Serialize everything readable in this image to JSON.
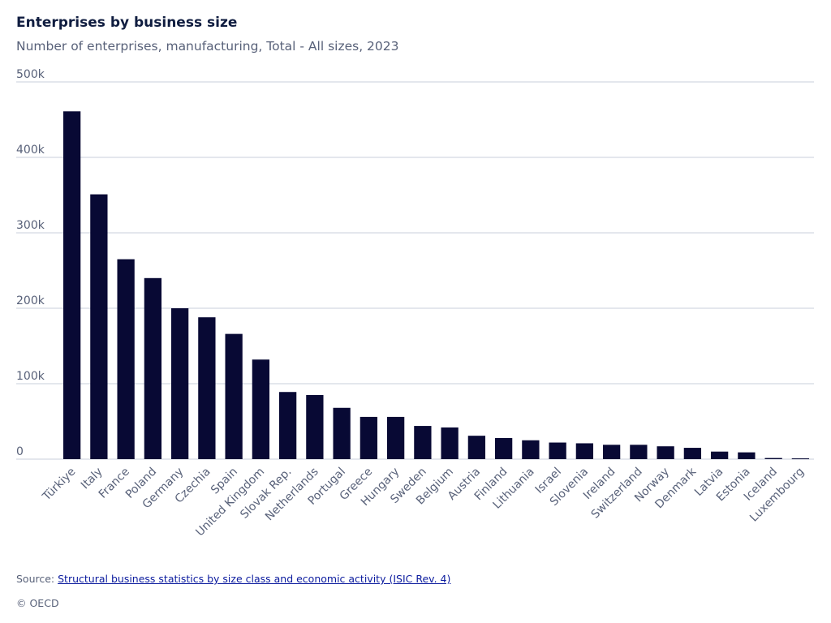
{
  "header": {
    "title": "Enterprises by business size",
    "subtitle": "Number of enterprises, manufacturing, Total - All sizes, 2023"
  },
  "footer": {
    "source_prefix": "Source: ",
    "source_link": "Structural business statistics by size class and economic activity (ISIC Rev. 4)",
    "copyright": "© OECD"
  },
  "colors": {
    "bar": "#080934",
    "grid": "#c9cfdb",
    "axis_text": "#586179",
    "link": "#0b1b9e"
  },
  "chart_data": {
    "type": "bar",
    "title": "Enterprises by business size",
    "subtitle": "Number of enterprises, manufacturing, Total - All sizes, 2023",
    "xlabel": "",
    "ylabel": "",
    "ylim": [
      0,
      500000
    ],
    "yticks": [
      0,
      100000,
      200000,
      300000,
      400000,
      500000
    ],
    "ytick_labels": [
      "0",
      "100k",
      "200k",
      "300k",
      "400k",
      "500k"
    ],
    "grid": true,
    "categories": [
      "Türkiye",
      "Italy",
      "France",
      "Poland",
      "Germany",
      "Czechia",
      "Spain",
      "United Kingdom",
      "Slovak Rep.",
      "Netherlands",
      "Portugal",
      "Greece",
      "Hungary",
      "Sweden",
      "Belgium",
      "Austria",
      "Finland",
      "Lithuania",
      "Israel",
      "Slovenia",
      "Ireland",
      "Switzerland",
      "Norway",
      "Denmark",
      "Latvia",
      "Estonia",
      "Iceland",
      "Luxembourg"
    ],
    "values": [
      461000,
      351000,
      265000,
      240000,
      200000,
      188000,
      166000,
      132000,
      89000,
      85000,
      68000,
      56000,
      56000,
      44000,
      42000,
      31000,
      28000,
      25000,
      22000,
      21000,
      19000,
      19000,
      17000,
      15000,
      10000,
      9000,
      1500,
      1000
    ]
  }
}
